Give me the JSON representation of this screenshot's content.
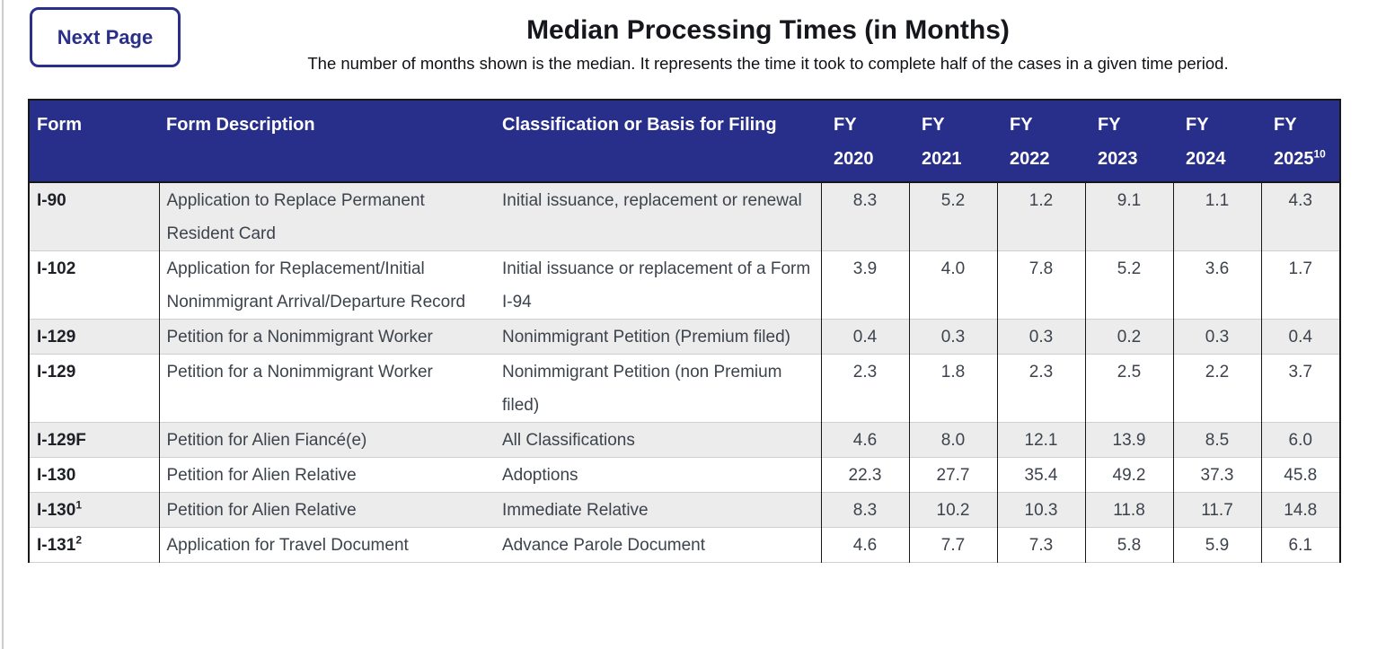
{
  "page": {
    "next_page_label": "Next Page",
    "title": "Median Processing Times (in Months)",
    "subtitle": "The number of months shown is the median. It represents the time it took to complete half of the cases in a given time period."
  },
  "colors": {
    "accent_blue": "#2a2f8a",
    "table_header_bg": "#282f8a",
    "shaded_row_bg": "#ececec"
  },
  "table": {
    "columns": {
      "form": "Form",
      "description": "Form Description",
      "classification": "Classification or Basis for Filing"
    },
    "fy_columns": [
      {
        "line1": "FY",
        "year": "2020",
        "sup": ""
      },
      {
        "line1": "FY",
        "year": "2021",
        "sup": ""
      },
      {
        "line1": "FY",
        "year": "2022",
        "sup": ""
      },
      {
        "line1": "FY",
        "year": "2023",
        "sup": ""
      },
      {
        "line1": "FY",
        "year": "2024",
        "sup": ""
      },
      {
        "line1": "FY",
        "year": "2025",
        "sup": "10"
      }
    ],
    "rows": [
      {
        "form": "I-90",
        "form_sup": "",
        "description": "Application to Replace Permanent Resident Card",
        "classification": "Initial issuance, replacement or renewal",
        "values": [
          "8.3",
          "5.2",
          "1.2",
          "9.1",
          "1.1",
          "4.3"
        ],
        "shaded": true
      },
      {
        "form": "I-102",
        "form_sup": "",
        "description": "Application for Replacement/Initial Nonimmigrant Arrival/Departure Record",
        "classification": "Initial issuance or replacement of a Form I-94",
        "values": [
          "3.9",
          "4.0",
          "7.8",
          "5.2",
          "3.6",
          "1.7"
        ],
        "shaded": false
      },
      {
        "form": "I-129",
        "form_sup": "",
        "description": "Petition for a Nonimmigrant Worker",
        "classification": "Nonimmigrant Petition (Premium filed)",
        "values": [
          "0.4",
          "0.3",
          "0.3",
          "0.2",
          "0.3",
          "0.4"
        ],
        "shaded": true
      },
      {
        "form": "I-129",
        "form_sup": "",
        "description": "Petition for a Nonimmigrant Worker",
        "classification": "Nonimmigrant Petition (non Premium filed)",
        "values": [
          "2.3",
          "1.8",
          "2.3",
          "2.5",
          "2.2",
          "3.7"
        ],
        "shaded": false
      },
      {
        "form": "I-129F",
        "form_sup": "",
        "description": "Petition for Alien Fiancé(e)",
        "classification": "All Classifications",
        "values": [
          "4.6",
          "8.0",
          "12.1",
          "13.9",
          "8.5",
          "6.0"
        ],
        "shaded": true
      },
      {
        "form": "I-130",
        "form_sup": "",
        "description": "Petition for Alien Relative",
        "classification": "Adoptions",
        "values": [
          "22.3",
          "27.7",
          "35.4",
          "49.2",
          "37.3",
          "45.8"
        ],
        "shaded": false
      },
      {
        "form": "I-130",
        "form_sup": "1",
        "description": "Petition for Alien Relative",
        "classification": "Immediate Relative",
        "values": [
          "8.3",
          "10.2",
          "10.3",
          "11.8",
          "11.7",
          "14.8"
        ],
        "shaded": true
      },
      {
        "form": "I-131",
        "form_sup": "2",
        "description": "Application for Travel Document",
        "classification": "Advance Parole Document",
        "values": [
          "4.6",
          "7.7",
          "7.3",
          "5.8",
          "5.9",
          "6.1"
        ],
        "shaded": false
      }
    ]
  }
}
